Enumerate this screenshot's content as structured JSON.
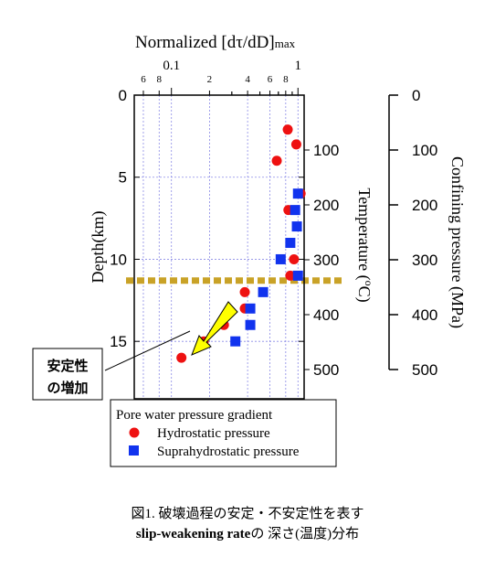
{
  "chart_data": {
    "type": "scatter",
    "top_axis": {
      "label_main": "Normalized [dτ/dD]",
      "label_sub": "max",
      "scale": "log",
      "range": [
        0.05,
        1.1
      ],
      "ticks": [
        {
          "value": 0.06,
          "label": "6"
        },
        {
          "value": 0.08,
          "label": "8"
        },
        {
          "value": 0.1,
          "label": "0.1"
        },
        {
          "value": 0.2,
          "label": "2"
        },
        {
          "value": 0.4,
          "label": "4"
        },
        {
          "value": 0.6,
          "label": "6"
        },
        {
          "value": 0.8,
          "label": "8"
        },
        {
          "value": 1.0,
          "label": "1"
        }
      ]
    },
    "left_axis": {
      "label": "Depth(km)",
      "range": [
        0,
        18.5
      ],
      "ticks": [
        0,
        5,
        10,
        15
      ]
    },
    "temperature_axis": {
      "label": "Temperature (",
      "label_sup": "o",
      "label_end": "C)",
      "ticks": [
        100,
        200,
        300,
        400,
        500
      ]
    },
    "pressure_axis": {
      "label": "Confining pressure (MPa)",
      "ticks": [
        0,
        100,
        200,
        300,
        400,
        500
      ]
    },
    "threshold_depth_km": 11.3,
    "series": [
      {
        "name": "Hydrostatic pressure",
        "marker": "circle",
        "color": "#ee1111",
        "points": [
          {
            "x": 0.83,
            "y": 2.1
          },
          {
            "x": 0.97,
            "y": 3.0
          },
          {
            "x": 0.68,
            "y": 4.0
          },
          {
            "x": 1.05,
            "y": 6.0
          },
          {
            "x": 0.84,
            "y": 7.0
          },
          {
            "x": 0.93,
            "y": 10.0
          },
          {
            "x": 0.87,
            "y": 11.0
          },
          {
            "x": 0.38,
            "y": 12.0
          },
          {
            "x": 0.38,
            "y": 13.0
          },
          {
            "x": 0.26,
            "y": 14.0
          },
          {
            "x": 0.18,
            "y": 15.0
          },
          {
            "x": 0.12,
            "y": 16.0
          }
        ]
      },
      {
        "name": "Suprahydrostatic pressure",
        "marker": "square",
        "color": "#1133ee",
        "points": [
          {
            "x": 1.0,
            "y": 6.0
          },
          {
            "x": 0.95,
            "y": 7.0
          },
          {
            "x": 0.98,
            "y": 8.0
          },
          {
            "x": 0.87,
            "y": 9.0
          },
          {
            "x": 0.73,
            "y": 10.0
          },
          {
            "x": 1.0,
            "y": 11.0
          },
          {
            "x": 0.53,
            "y": 12.0
          },
          {
            "x": 0.42,
            "y": 13.0
          },
          {
            "x": 0.42,
            "y": 14.0
          },
          {
            "x": 0.32,
            "y": 15.0
          }
        ]
      }
    ],
    "legend": {
      "title": "Pore water pressure gradient",
      "placement": "bottom"
    },
    "annotation": {
      "lines": [
        "安定性",
        "の増加"
      ],
      "arrow_color": "#ffff00"
    },
    "grid": true
  },
  "caption": {
    "line1": "図1. 破壊過程の安定・不安定性を表す",
    "line2_bold": "slip-weakening rate",
    "line2_rest": "の 深さ(温度)分布"
  }
}
